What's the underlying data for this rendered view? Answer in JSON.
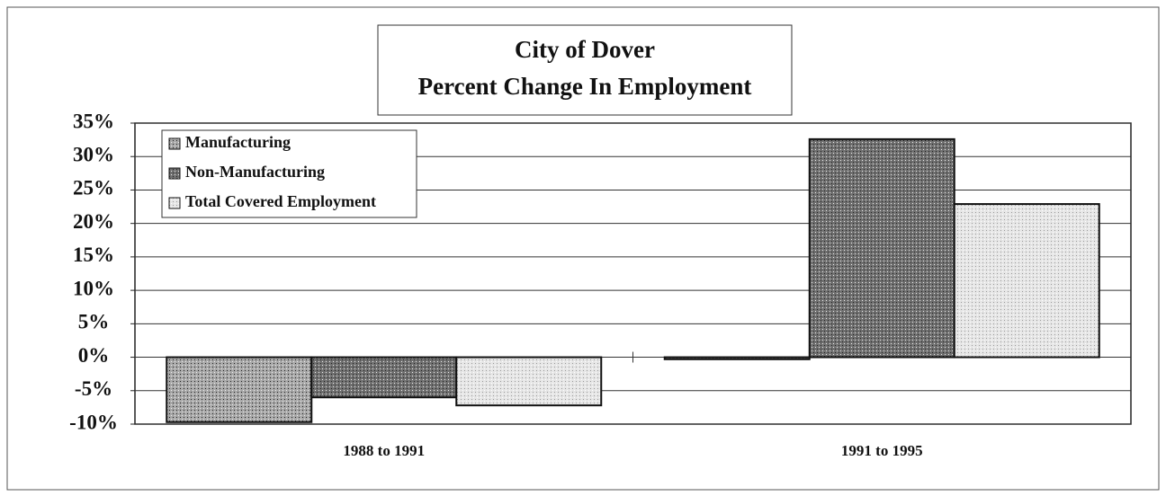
{
  "chart_data": {
    "type": "bar",
    "title": "City of Dover",
    "subtitle": "Percent Change In Employment",
    "categories": [
      "1988 to 1991",
      "1991 to 1995"
    ],
    "series": [
      {
        "name": "Manufacturing",
        "color": "#a8a8a8",
        "values": [
          -9.7,
          -0.3
        ]
      },
      {
        "name": "Non-Manufacturing",
        "color": "#707070",
        "values": [
          -6.0,
          32.6
        ]
      },
      {
        "name": "Total Covered Employment",
        "color": "#e6e6e6",
        "values": [
          -7.2,
          22.9
        ]
      }
    ],
    "ylim": [
      -10,
      35
    ],
    "yticks": [
      {
        "value": -10,
        "label": "-10%"
      },
      {
        "value": -5,
        "label": "-5%"
      },
      {
        "value": 0,
        "label": "0%"
      },
      {
        "value": 5,
        "label": "5%"
      },
      {
        "value": 10,
        "label": "10%"
      },
      {
        "value": 15,
        "label": "15%"
      },
      {
        "value": 20,
        "label": "20%"
      },
      {
        "value": 25,
        "label": "25%"
      },
      {
        "value": 30,
        "label": "30%"
      },
      {
        "value": 35,
        "label": "35%"
      }
    ],
    "grid": true,
    "legend": "top-left"
  }
}
